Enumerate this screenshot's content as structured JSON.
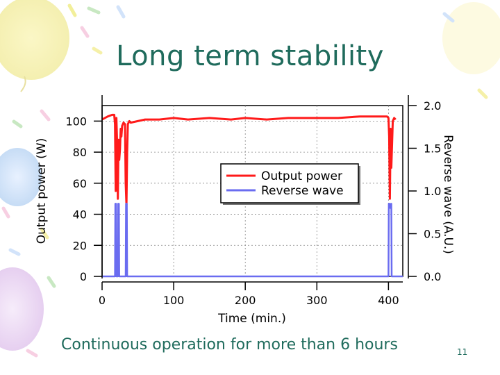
{
  "slide": {
    "title": "Long term stability",
    "caption": "Continuous operation for more than 6 hours",
    "page_number": "11"
  },
  "chart_data": {
    "type": "line",
    "xlabel": "Time (min.)",
    "ylabel": "Output power (W)",
    "y2label": "Reverse wave (A.U.)",
    "xlim": [
      0,
      420
    ],
    "ylim": [
      0,
      110
    ],
    "y2lim": [
      0,
      2.0
    ],
    "xticks": [
      0,
      100,
      200,
      300,
      400
    ],
    "yticks": [
      0,
      20,
      40,
      60,
      80,
      100
    ],
    "y2ticks": [
      "0.0",
      "0.5",
      "1.0",
      "1.5",
      "2.0"
    ],
    "grid": true,
    "legend_position": "center-right",
    "colors": {
      "output": "#ff1a1a",
      "reverse": "#6a6cf0",
      "title": "#1f6b5c"
    },
    "series": [
      {
        "name": "Output power",
        "axis": "left",
        "x": [
          0,
          8,
          14,
          17,
          18,
          19,
          20,
          21,
          22,
          23,
          24,
          25,
          26,
          27,
          28,
          30,
          32,
          33,
          34,
          35,
          36,
          38,
          40,
          50,
          60,
          80,
          100,
          120,
          150,
          180,
          200,
          230,
          260,
          300,
          330,
          360,
          380,
          398,
          400,
          401,
          402,
          403,
          404,
          406,
          408,
          410
        ],
        "y": [
          101,
          103,
          104,
          104,
          98,
          55,
          102,
          85,
          50,
          88,
          75,
          82,
          95,
          90,
          97,
          99,
          98,
          60,
          46,
          80,
          98,
          100,
          99,
          100,
          101,
          101,
          102,
          101,
          102,
          101,
          102,
          101,
          102,
          102,
          102,
          103,
          103,
          103,
          102,
          90,
          50,
          95,
          70,
          100,
          102,
          101
        ]
      },
      {
        "name": "Reverse wave",
        "axis": "right",
        "x": [
          0,
          18,
          18.5,
          19,
          19.5,
          20,
          22,
          22.5,
          23,
          23.5,
          24,
          33,
          33.5,
          34,
          34.5,
          35,
          400,
          400.5,
          401,
          402,
          403,
          404,
          404.5,
          420
        ],
        "y": [
          0,
          0,
          0.85,
          0.8,
          0.85,
          0,
          0,
          0.85,
          0.8,
          0.85,
          0,
          0,
          0.85,
          0.8,
          0.85,
          0,
          0,
          0.85,
          0.8,
          0.85,
          0.8,
          0.85,
          0,
          0
        ]
      }
    ]
  }
}
